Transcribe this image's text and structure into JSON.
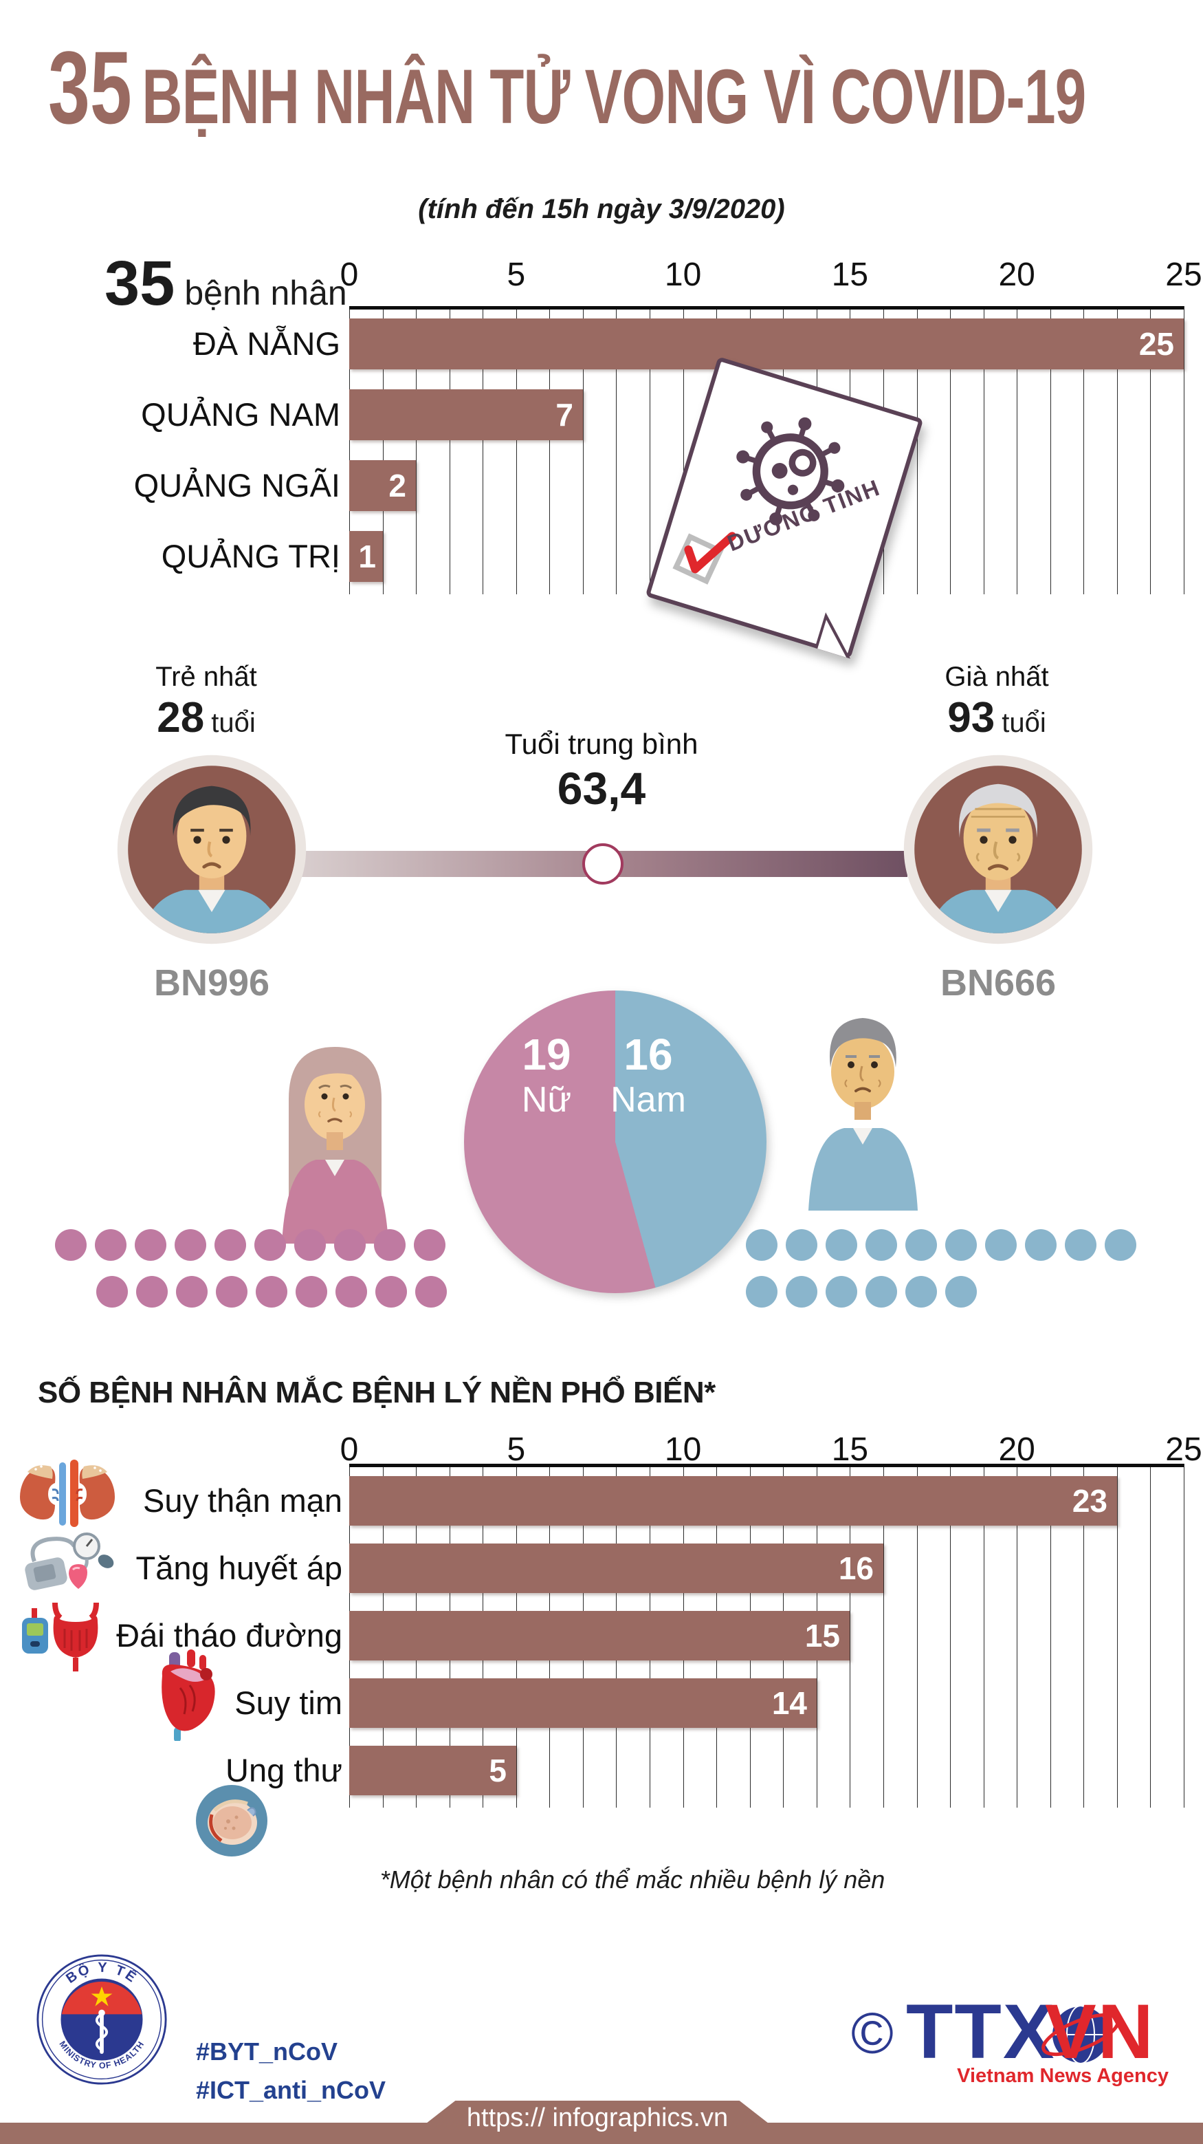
{
  "header": {
    "number": "35",
    "title": "BỆNH NHÂN TỬ VONG VÌ COVID-19",
    "subtitle": "(tính đến 15h ngày 3/9/2020)"
  },
  "colors": {
    "accent_brown": "#9a6a62",
    "title_brown": "#996a61",
    "pie_female_pink": "#c687a6",
    "pie_male_blue": "#8cb7cd",
    "stamp_plum": "#5a4155",
    "navy": "#2b3990",
    "red": "#e0272c",
    "id_gray": "#8c8c8c"
  },
  "chart_data": [
    {
      "id": "deaths-by-province",
      "type": "bar",
      "orientation": "horizontal",
      "prefix_number": "35",
      "prefix_label": "bệnh nhân",
      "categories": [
        "ĐÀ NẴNG",
        "QUẢNG NAM",
        "QUẢNG NGÃI",
        "QUẢNG TRỊ"
      ],
      "values": [
        25,
        7,
        2,
        1
      ],
      "xlim": [
        0,
        25
      ],
      "xticks": [
        0,
        5,
        10,
        15,
        20,
        25
      ],
      "grid": true,
      "bar_color": "#9a6a62",
      "stamp_label": "DƯƠNG TÍNH"
    },
    {
      "id": "gender-split",
      "type": "pie",
      "slices": [
        {
          "label": "Nữ",
          "value": 19,
          "color": "#c687a6"
        },
        {
          "label": "Nam",
          "value": 16,
          "color": "#8cb7cd"
        }
      ],
      "pictogram_rows": {
        "female": [
          10,
          9
        ],
        "male": [
          10,
          6
        ]
      }
    },
    {
      "id": "underlying-conditions",
      "type": "bar",
      "orientation": "horizontal",
      "title": "SỐ BỆNH NHÂN MẮC BỆNH LÝ NỀN PHỔ BIẾN*",
      "categories": [
        "Suy thận mạn",
        "Tăng huyết áp",
        "Đái tháo đường",
        "Suy tim",
        "Ung thư"
      ],
      "values": [
        23,
        16,
        15,
        14,
        5
      ],
      "icons": [
        "kidneys-icon",
        "blood-pressure-icon",
        "diabetes-icon",
        "heart-icon",
        "cancer-cell-icon"
      ],
      "xlim": [
        0,
        25
      ],
      "xticks": [
        0,
        5,
        10,
        15,
        20,
        25
      ],
      "grid": true,
      "bar_color": "#9a6a62",
      "footnote": "*Một bệnh nhân có thể mắc nhiều bệnh lý nền"
    }
  ],
  "age": {
    "youngest": {
      "title": "Trẻ nhất",
      "value": "28",
      "unit": "tuổi",
      "id": "BN996"
    },
    "average": {
      "title": "Tuổi trung bình",
      "value": "63,4"
    },
    "oldest": {
      "title": "Già nhất",
      "value": "93",
      "unit": "tuổi",
      "id": "BN666"
    }
  },
  "footer": {
    "hashtag1": "#BYT_nCoV",
    "hashtag2": "#ICT_anti_nCoV",
    "url": "https:// infographics.vn",
    "moh": {
      "top": "BỘ Y TẾ",
      "bottom": "MINISTRY OF HEALTH"
    },
    "agency": {
      "copyright": "©",
      "abbr_blue": "TTX",
      "abbr_red": "VN",
      "name": "Vietnam News Agency"
    }
  }
}
